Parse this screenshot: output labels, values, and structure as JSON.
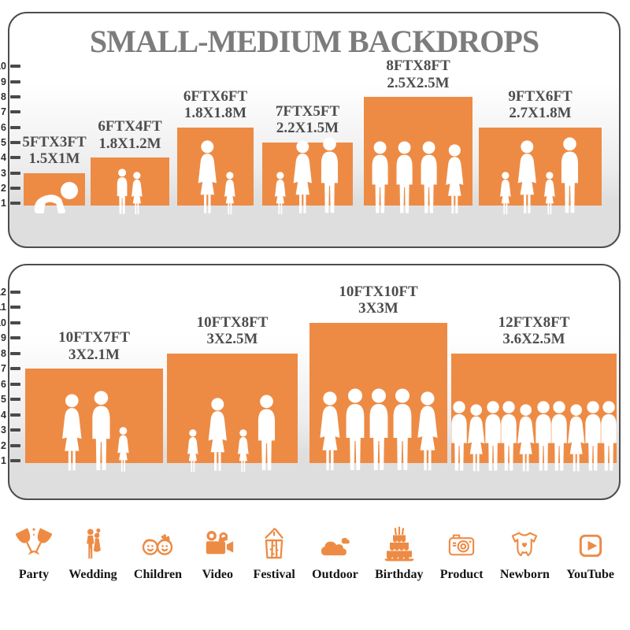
{
  "title": "SMALL-MEDIUM BACKDROPS",
  "colors": {
    "accent": "#ed8b45",
    "panel_border": "#4d4d4d",
    "floor": "#dedede",
    "title_text": "#7c7c7c",
    "label_text": "#4d4d4d",
    "tick_text": "#2f2f2f",
    "silhouette": "#ffffff"
  },
  "panels": [
    {
      "name": "small-backdrops",
      "scale_max": 10,
      "bars": [
        {
          "size_ft": "5FTX3FT",
          "size_m": "1.5X1M",
          "height_ft": 3,
          "people": [
            "baby"
          ]
        },
        {
          "size_ft": "6FTX4FT",
          "size_m": "1.8X1.2M",
          "height_ft": 4,
          "people": [
            "boy",
            "girl"
          ]
        },
        {
          "size_ft": "6FTX6FT",
          "size_m": "1.8X1.8M",
          "height_ft": 6,
          "people": [
            "woman",
            "girl"
          ]
        },
        {
          "size_ft": "7FTX5FT",
          "size_m": "2.2X1.5M",
          "height_ft": 5,
          "people": [
            "girl",
            "woman",
            "man"
          ]
        },
        {
          "size_ft": "8FTX8FT",
          "size_m": "2.5X2.5M",
          "height_ft": 8,
          "people": [
            "man",
            "man",
            "man",
            "woman"
          ]
        },
        {
          "size_ft": "9FTX6FT",
          "size_m": "2.7X1.8M",
          "height_ft": 6,
          "people": [
            "girl",
            "woman",
            "girl",
            "man"
          ]
        }
      ]
    },
    {
      "name": "medium-backdrops",
      "scale_max": 12,
      "bars": [
        {
          "size_ft": "10FTX7FT",
          "size_m": "3X2.1M",
          "height_ft": 7,
          "people": [
            "woman",
            "man",
            "girl"
          ]
        },
        {
          "size_ft": "10FTX8FT",
          "size_m": "3X2.5M",
          "height_ft": 8,
          "people": [
            "girl",
            "woman",
            "girl",
            "man"
          ]
        },
        {
          "size_ft": "10FTX10FT",
          "size_m": "3X3M",
          "height_ft": 10,
          "people": [
            "woman",
            "man",
            "man",
            "man",
            "woman"
          ]
        },
        {
          "size_ft": "12FTX8FT",
          "size_m": "3.6X2.5M",
          "height_ft": 8,
          "people": [
            "man",
            "woman",
            "man",
            "man",
            "woman",
            "man",
            "man",
            "woman",
            "man",
            "man"
          ]
        }
      ]
    }
  ],
  "categories": [
    {
      "label": "Party",
      "icon": "party-icon"
    },
    {
      "label": "Wedding",
      "icon": "wedding-icon"
    },
    {
      "label": "Children",
      "icon": "children-icon"
    },
    {
      "label": "Video",
      "icon": "video-icon"
    },
    {
      "label": "Festival",
      "icon": "festival-icon"
    },
    {
      "label": "Outdoor",
      "icon": "outdoor-icon"
    },
    {
      "label": "Birthday",
      "icon": "birthday-icon"
    },
    {
      "label": "Product",
      "icon": "product-icon"
    },
    {
      "label": "Newborn",
      "icon": "newborn-icon"
    },
    {
      "label": "YouTube",
      "icon": "youtube-icon"
    }
  ]
}
